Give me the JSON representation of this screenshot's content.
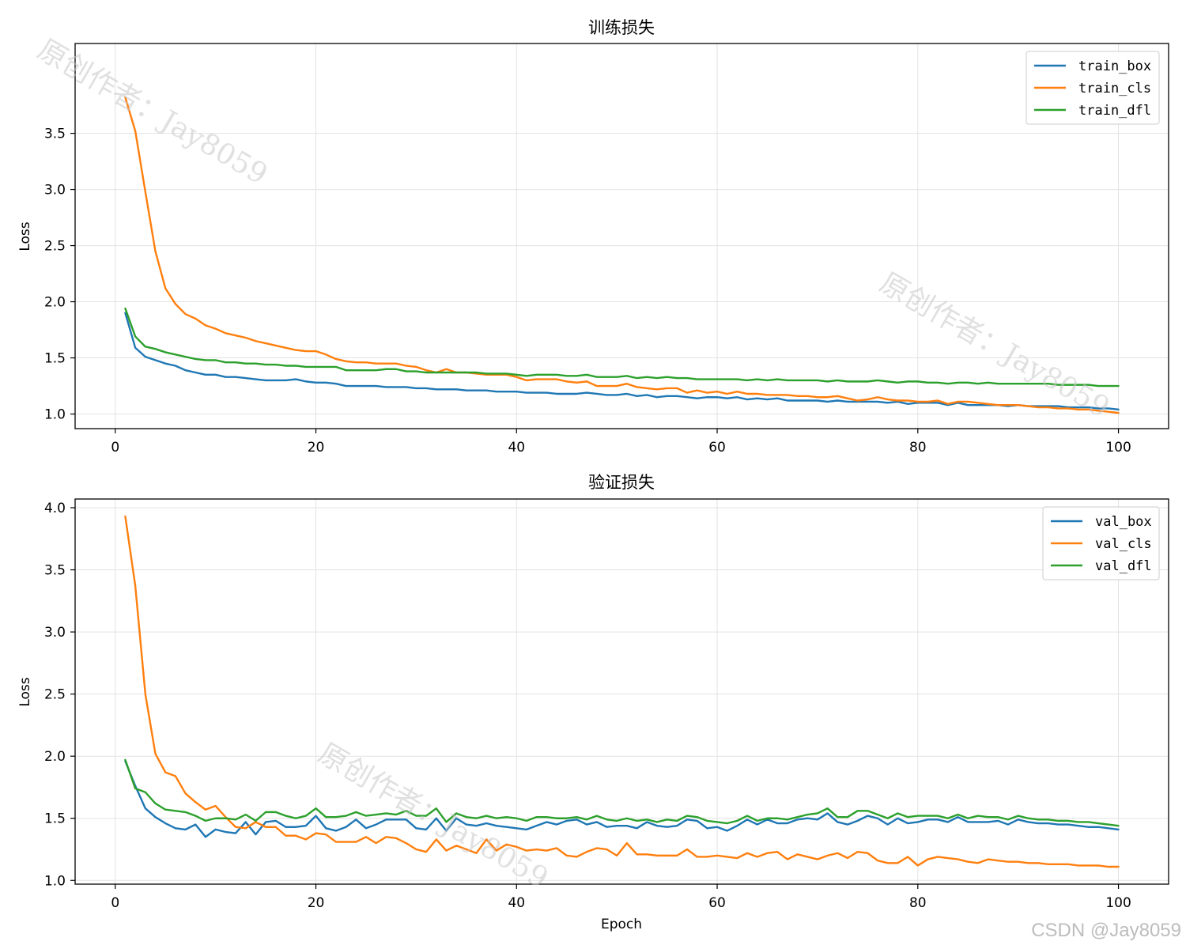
{
  "watermark_text": "原创作者：Jay8059",
  "credit": "CSDN @Jay8059",
  "colors": {
    "blue": "#1f77b4",
    "orange": "#ff7f0e",
    "green": "#2ca02c"
  },
  "chart_data": [
    {
      "type": "line",
      "title": "训练损失",
      "xlabel": "",
      "ylabel": "Loss",
      "xlim": [
        -4,
        105
      ],
      "ylim": [
        0.87,
        4.3
      ],
      "xticks": [
        0,
        20,
        40,
        60,
        80,
        100
      ],
      "yticks": [
        1.0,
        1.5,
        2.0,
        2.5,
        3.0,
        3.5
      ],
      "grid": true,
      "legend": "top-right",
      "x": [
        1,
        2,
        3,
        4,
        5,
        6,
        7,
        8,
        9,
        10,
        11,
        12,
        13,
        14,
        15,
        16,
        17,
        18,
        19,
        20,
        21,
        22,
        23,
        24,
        25,
        26,
        27,
        28,
        29,
        30,
        31,
        32,
        33,
        34,
        35,
        36,
        37,
        38,
        39,
        40,
        41,
        42,
        43,
        44,
        45,
        46,
        47,
        48,
        49,
        50,
        51,
        52,
        53,
        54,
        55,
        56,
        57,
        58,
        59,
        60,
        61,
        62,
        63,
        64,
        65,
        66,
        67,
        68,
        69,
        70,
        71,
        72,
        73,
        74,
        75,
        76,
        77,
        78,
        79,
        80,
        81,
        82,
        83,
        84,
        85,
        86,
        87,
        88,
        89,
        90,
        91,
        92,
        93,
        94,
        95,
        96,
        97,
        98,
        99,
        100
      ],
      "series": [
        {
          "name": "train_box",
          "color": "#1f77b4",
          "values": [
            1.9,
            1.59,
            1.51,
            1.48,
            1.45,
            1.43,
            1.39,
            1.37,
            1.35,
            1.35,
            1.33,
            1.33,
            1.32,
            1.31,
            1.3,
            1.3,
            1.3,
            1.31,
            1.29,
            1.28,
            1.28,
            1.27,
            1.25,
            1.25,
            1.25,
            1.25,
            1.24,
            1.24,
            1.24,
            1.23,
            1.23,
            1.22,
            1.22,
            1.22,
            1.21,
            1.21,
            1.21,
            1.2,
            1.2,
            1.2,
            1.19,
            1.19,
            1.19,
            1.18,
            1.18,
            1.18,
            1.19,
            1.18,
            1.17,
            1.17,
            1.18,
            1.16,
            1.17,
            1.15,
            1.16,
            1.16,
            1.15,
            1.14,
            1.15,
            1.15,
            1.14,
            1.15,
            1.13,
            1.14,
            1.13,
            1.14,
            1.12,
            1.12,
            1.12,
            1.12,
            1.11,
            1.12,
            1.11,
            1.11,
            1.11,
            1.11,
            1.1,
            1.11,
            1.09,
            1.1,
            1.1,
            1.1,
            1.08,
            1.1,
            1.08,
            1.08,
            1.08,
            1.08,
            1.07,
            1.08,
            1.07,
            1.07,
            1.07,
            1.07,
            1.06,
            1.06,
            1.06,
            1.05,
            1.05,
            1.04
          ]
        },
        {
          "name": "train_cls",
          "color": "#ff7f0e",
          "values": [
            3.82,
            3.52,
            2.98,
            2.45,
            2.12,
            1.98,
            1.89,
            1.85,
            1.79,
            1.76,
            1.72,
            1.7,
            1.68,
            1.65,
            1.63,
            1.61,
            1.59,
            1.57,
            1.56,
            1.56,
            1.53,
            1.49,
            1.47,
            1.46,
            1.46,
            1.45,
            1.45,
            1.45,
            1.43,
            1.42,
            1.39,
            1.37,
            1.4,
            1.37,
            1.37,
            1.36,
            1.35,
            1.35,
            1.35,
            1.33,
            1.3,
            1.31,
            1.31,
            1.31,
            1.29,
            1.28,
            1.29,
            1.25,
            1.25,
            1.25,
            1.27,
            1.24,
            1.23,
            1.22,
            1.23,
            1.23,
            1.19,
            1.21,
            1.19,
            1.2,
            1.18,
            1.2,
            1.18,
            1.18,
            1.17,
            1.17,
            1.17,
            1.16,
            1.16,
            1.15,
            1.15,
            1.16,
            1.14,
            1.12,
            1.13,
            1.15,
            1.13,
            1.12,
            1.12,
            1.11,
            1.11,
            1.12,
            1.09,
            1.11,
            1.11,
            1.1,
            1.09,
            1.08,
            1.08,
            1.08,
            1.07,
            1.06,
            1.06,
            1.05,
            1.05,
            1.04,
            1.04,
            1.03,
            1.02,
            1.01
          ]
        },
        {
          "name": "train_dfl",
          "color": "#2ca02c",
          "values": [
            1.94,
            1.69,
            1.6,
            1.58,
            1.55,
            1.53,
            1.51,
            1.49,
            1.48,
            1.48,
            1.46,
            1.46,
            1.45,
            1.45,
            1.44,
            1.44,
            1.43,
            1.43,
            1.42,
            1.42,
            1.42,
            1.42,
            1.39,
            1.39,
            1.39,
            1.39,
            1.4,
            1.4,
            1.38,
            1.38,
            1.37,
            1.37,
            1.37,
            1.37,
            1.37,
            1.37,
            1.36,
            1.36,
            1.36,
            1.35,
            1.34,
            1.35,
            1.35,
            1.35,
            1.34,
            1.34,
            1.35,
            1.33,
            1.33,
            1.33,
            1.34,
            1.32,
            1.33,
            1.32,
            1.33,
            1.32,
            1.32,
            1.31,
            1.31,
            1.31,
            1.31,
            1.31,
            1.3,
            1.31,
            1.3,
            1.31,
            1.3,
            1.3,
            1.3,
            1.3,
            1.29,
            1.3,
            1.29,
            1.29,
            1.29,
            1.3,
            1.29,
            1.28,
            1.29,
            1.29,
            1.28,
            1.28,
            1.27,
            1.28,
            1.28,
            1.27,
            1.28,
            1.27,
            1.27,
            1.27,
            1.27,
            1.27,
            1.27,
            1.26,
            1.26,
            1.26,
            1.26,
            1.25,
            1.25,
            1.25
          ]
        }
      ]
    },
    {
      "type": "line",
      "title": "验证损失",
      "xlabel": "Epoch",
      "ylabel": "Loss",
      "xlim": [
        -4,
        105
      ],
      "ylim": [
        0.97,
        4.07
      ],
      "xticks": [
        0,
        20,
        40,
        60,
        80,
        100
      ],
      "yticks": [
        1.0,
        1.5,
        2.0,
        2.5,
        3.0,
        3.5,
        4.0
      ],
      "grid": true,
      "legend": "top-right",
      "x": [
        1,
        2,
        3,
        4,
        5,
        6,
        7,
        8,
        9,
        10,
        11,
        12,
        13,
        14,
        15,
        16,
        17,
        18,
        19,
        20,
        21,
        22,
        23,
        24,
        25,
        26,
        27,
        28,
        29,
        30,
        31,
        32,
        33,
        34,
        35,
        36,
        37,
        38,
        39,
        40,
        41,
        42,
        43,
        44,
        45,
        46,
        47,
        48,
        49,
        50,
        51,
        52,
        53,
        54,
        55,
        56,
        57,
        58,
        59,
        60,
        61,
        62,
        63,
        64,
        65,
        66,
        67,
        68,
        69,
        70,
        71,
        72,
        73,
        74,
        75,
        76,
        77,
        78,
        79,
        80,
        81,
        82,
        83,
        84,
        85,
        86,
        87,
        88,
        89,
        90,
        91,
        92,
        93,
        94,
        95,
        96,
        97,
        98,
        99,
        100
      ],
      "series": [
        {
          "name": "val_box",
          "color": "#1f77b4",
          "values": [
            1.96,
            1.76,
            1.58,
            1.51,
            1.46,
            1.42,
            1.41,
            1.45,
            1.35,
            1.41,
            1.39,
            1.38,
            1.47,
            1.37,
            1.47,
            1.48,
            1.43,
            1.43,
            1.44,
            1.52,
            1.42,
            1.4,
            1.43,
            1.49,
            1.42,
            1.45,
            1.49,
            1.49,
            1.49,
            1.42,
            1.41,
            1.5,
            1.4,
            1.5,
            1.45,
            1.44,
            1.46,
            1.44,
            1.43,
            1.42,
            1.41,
            1.44,
            1.47,
            1.45,
            1.48,
            1.49,
            1.45,
            1.47,
            1.43,
            1.44,
            1.44,
            1.42,
            1.47,
            1.44,
            1.43,
            1.44,
            1.49,
            1.48,
            1.42,
            1.43,
            1.4,
            1.44,
            1.49,
            1.45,
            1.49,
            1.46,
            1.46,
            1.49,
            1.5,
            1.49,
            1.54,
            1.47,
            1.45,
            1.48,
            1.52,
            1.5,
            1.45,
            1.5,
            1.46,
            1.47,
            1.49,
            1.49,
            1.47,
            1.51,
            1.47,
            1.47,
            1.47,
            1.48,
            1.45,
            1.49,
            1.47,
            1.46,
            1.46,
            1.45,
            1.45,
            1.44,
            1.43,
            1.43,
            1.42,
            1.41
          ]
        },
        {
          "name": "val_cls",
          "color": "#ff7f0e",
          "values": [
            3.93,
            3.37,
            2.5,
            2.02,
            1.87,
            1.84,
            1.7,
            1.63,
            1.57,
            1.6,
            1.51,
            1.43,
            1.42,
            1.47,
            1.43,
            1.43,
            1.36,
            1.36,
            1.33,
            1.38,
            1.37,
            1.31,
            1.31,
            1.31,
            1.35,
            1.3,
            1.35,
            1.34,
            1.3,
            1.25,
            1.23,
            1.33,
            1.24,
            1.28,
            1.25,
            1.22,
            1.33,
            1.24,
            1.29,
            1.27,
            1.24,
            1.25,
            1.24,
            1.26,
            1.2,
            1.19,
            1.23,
            1.26,
            1.25,
            1.2,
            1.3,
            1.21,
            1.21,
            1.2,
            1.2,
            1.2,
            1.25,
            1.19,
            1.19,
            1.2,
            1.19,
            1.18,
            1.22,
            1.19,
            1.22,
            1.23,
            1.17,
            1.21,
            1.19,
            1.17,
            1.2,
            1.22,
            1.18,
            1.23,
            1.22,
            1.16,
            1.14,
            1.14,
            1.19,
            1.12,
            1.17,
            1.19,
            1.18,
            1.17,
            1.15,
            1.14,
            1.17,
            1.16,
            1.15,
            1.15,
            1.14,
            1.14,
            1.13,
            1.13,
            1.13,
            1.12,
            1.12,
            1.12,
            1.11,
            1.11
          ]
        },
        {
          "name": "val_dfl",
          "color": "#2ca02c",
          "values": [
            1.97,
            1.74,
            1.71,
            1.62,
            1.57,
            1.56,
            1.55,
            1.52,
            1.48,
            1.5,
            1.5,
            1.49,
            1.53,
            1.48,
            1.55,
            1.55,
            1.52,
            1.5,
            1.52,
            1.58,
            1.51,
            1.51,
            1.52,
            1.55,
            1.52,
            1.53,
            1.54,
            1.53,
            1.56,
            1.52,
            1.52,
            1.58,
            1.47,
            1.54,
            1.51,
            1.5,
            1.52,
            1.5,
            1.51,
            1.5,
            1.48,
            1.51,
            1.51,
            1.5,
            1.5,
            1.51,
            1.49,
            1.52,
            1.49,
            1.48,
            1.5,
            1.48,
            1.49,
            1.47,
            1.49,
            1.48,
            1.52,
            1.51,
            1.48,
            1.47,
            1.46,
            1.48,
            1.52,
            1.48,
            1.5,
            1.5,
            1.49,
            1.51,
            1.53,
            1.54,
            1.58,
            1.51,
            1.51,
            1.56,
            1.56,
            1.53,
            1.5,
            1.54,
            1.51,
            1.52,
            1.52,
            1.52,
            1.5,
            1.53,
            1.5,
            1.52,
            1.51,
            1.51,
            1.49,
            1.52,
            1.5,
            1.49,
            1.49,
            1.48,
            1.48,
            1.47,
            1.47,
            1.46,
            1.45,
            1.44
          ]
        }
      ]
    }
  ]
}
